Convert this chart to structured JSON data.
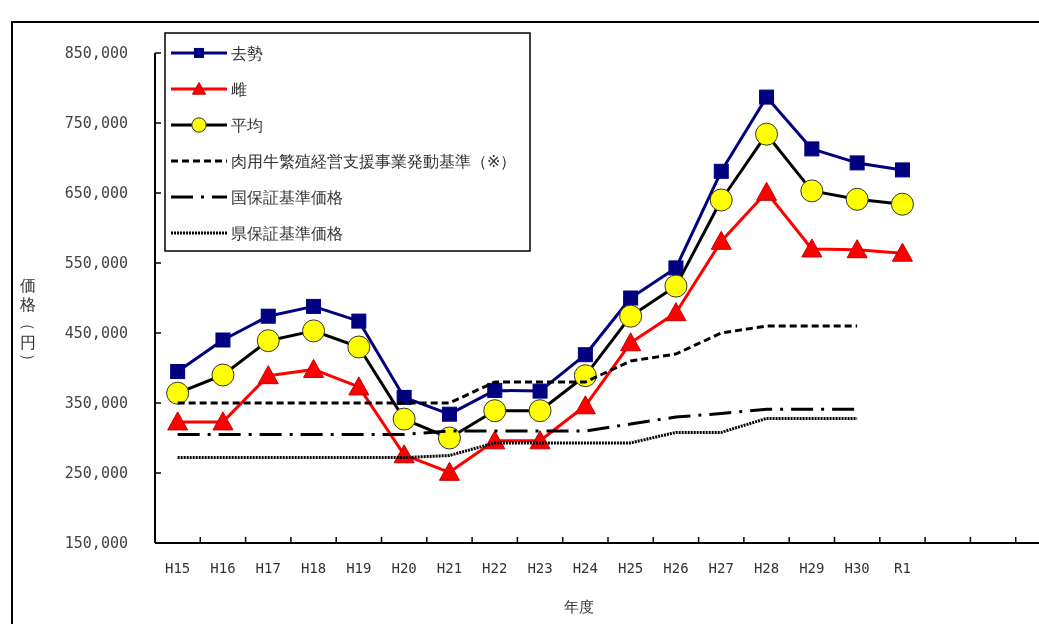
{
  "chart_data": {
    "type": "line",
    "xlabel": "年度",
    "ylabel": "価格（円）",
    "categories": [
      "H15",
      "H16",
      "H17",
      "H18",
      "H19",
      "H20",
      "H21",
      "H22",
      "H23",
      "H24",
      "H25",
      "H26",
      "H27",
      "H28",
      "H29",
      "H30",
      "R1",
      null,
      null,
      null
    ],
    "ylim": [
      150000,
      850000
    ],
    "yticks": [
      {
        "value": 150000,
        "label": "150,000"
      },
      {
        "value": 250000,
        "label": "250,000"
      },
      {
        "value": 350000,
        "label": "350,000"
      },
      {
        "value": 450000,
        "label": "450,000"
      },
      {
        "value": 550000,
        "label": "550,000"
      },
      {
        "value": 650000,
        "label": "650,000"
      },
      {
        "value": 750000,
        "label": "750,000"
      },
      {
        "value": 850000,
        "label": "850,000"
      }
    ],
    "grid": false,
    "legend": "top left",
    "series": [
      {
        "name": "去勢",
        "color": "#000080",
        "marker": "square",
        "line_style": "solid",
        "values": [
          395000,
          440000,
          474000,
          488000,
          467000,
          358000,
          334000,
          368000,
          367000,
          419000,
          500000,
          543000,
          681000,
          787000,
          713000,
          693000,
          683000,
          null,
          null,
          null
        ]
      },
      {
        "name": "雌",
        "color": "#ff0000",
        "marker": "triangle",
        "line_style": "solid",
        "values": [
          323000,
          323000,
          389000,
          398000,
          373000,
          276000,
          251000,
          296000,
          296000,
          346000,
          436000,
          479000,
          581000,
          651000,
          570000,
          569000,
          564000,
          null,
          null,
          null
        ]
      },
      {
        "name": "平均",
        "color": "#000000",
        "marker": "circle",
        "line_style": "solid",
        "values": [
          364000,
          390000,
          439000,
          453000,
          430000,
          327000,
          300000,
          339000,
          339000,
          389000,
          474000,
          517000,
          640000,
          734000,
          653000,
          641000,
          634000,
          null,
          null,
          null
        ]
      },
      {
        "name": "肉用牛繁殖経営支援事業発動基準（※）",
        "color": "#000000",
        "marker": "none",
        "line_style": "dashed",
        "values": [
          350000,
          350000,
          350000,
          350000,
          350000,
          350000,
          350000,
          380000,
          380000,
          380000,
          410000,
          420000,
          450000,
          460000,
          460000,
          460000,
          null,
          null,
          null,
          null
        ]
      },
      {
        "name": "国保証基準価格",
        "color": "#000000",
        "marker": "none",
        "line_style": "dashdot",
        "values": [
          305000,
          305000,
          305000,
          305000,
          305000,
          305000,
          310000,
          310000,
          310000,
          310000,
          320000,
          330000,
          335000,
          341000,
          341000,
          341000,
          null,
          null,
          null,
          null
        ]
      },
      {
        "name": "県保証基準価格",
        "color": "#000000",
        "marker": "none",
        "line_style": "dotted",
        "values": [
          272000,
          272000,
          272000,
          272000,
          272000,
          272000,
          275000,
          293000,
          293000,
          293000,
          293000,
          308000,
          308000,
          328000,
          328000,
          328000,
          null,
          null,
          null,
          null
        ]
      }
    ]
  }
}
